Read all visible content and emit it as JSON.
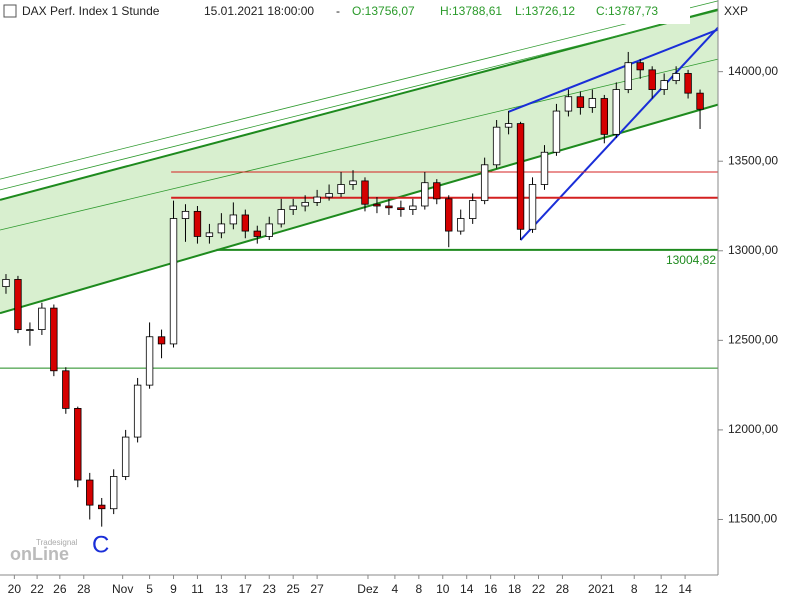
{
  "chart_data": {
    "type": "candlestick",
    "title": "DAX Perf. Index 1 Stunde",
    "datetime": "15.01.2021 18:00:00",
    "separator": "-",
    "ohlc_labels": [
      "O:13756,07",
      "H:13788,61",
      "L:13726,12",
      "C:13787,73"
    ],
    "symbol": "XXP",
    "annotation": "C",
    "watermark": [
      "Tradesignal",
      "onLine"
    ],
    "x": [
      0,
      1,
      2,
      3,
      4,
      5,
      6,
      7,
      8,
      9,
      10,
      11,
      12,
      13,
      14,
      15,
      16,
      17,
      18,
      19,
      20,
      21,
      22,
      23,
      24,
      25,
      26,
      27,
      28,
      29,
      30,
      31,
      32,
      33,
      34,
      35,
      36,
      37,
      38,
      39,
      40,
      41,
      42,
      43,
      44,
      45,
      46,
      47,
      48,
      49,
      50,
      51,
      52,
      53,
      54,
      55,
      56,
      57,
      58
    ],
    "open": [
      12800,
      12840,
      12560,
      12560,
      12680,
      12330,
      12120,
      11720,
      11580,
      11560,
      11740,
      11960,
      12250,
      12520,
      12480,
      13180,
      13220,
      13080,
      13100,
      13150,
      13200,
      13110,
      13080,
      13150,
      13230,
      13250,
      13270,
      13300,
      13320,
      13370,
      13390,
      13260,
      13250,
      13240,
      13230,
      13250,
      13380,
      13290,
      13110,
      13180,
      13280,
      13480,
      13690,
      13710,
      13120,
      13370,
      13550,
      13780,
      13860,
      13800,
      13850,
      13650,
      13900,
      14050,
      14010,
      13900,
      13950,
      13990,
      13880
    ],
    "high": [
      12870,
      12860,
      12600,
      12710,
      12700,
      12350,
      12130,
      11760,
      11620,
      11780,
      12000,
      12290,
      12600,
      12560,
      13280,
      13260,
      13250,
      13150,
      13210,
      13270,
      13230,
      13140,
      13190,
      13290,
      13290,
      13310,
      13340,
      13370,
      13440,
      13450,
      13410,
      13300,
      13290,
      13280,
      13290,
      13440,
      13400,
      13310,
      13230,
      13320,
      13520,
      13730,
      13780,
      13720,
      13410,
      13590,
      13820,
      13900,
      13890,
      13900,
      13870,
      13940,
      14110,
      14070,
      14030,
      13990,
      14030,
      14010,
      13900
    ],
    "low": [
      12760,
      12540,
      12470,
      12530,
      12300,
      12090,
      11680,
      11500,
      11460,
      11530,
      11720,
      11930,
      12230,
      12400,
      12460,
      13050,
      13040,
      13040,
      13070,
      13120,
      13070,
      13040,
      13060,
      13130,
      13200,
      13220,
      13250,
      13280,
      13300,
      13340,
      13220,
      13210,
      13200,
      13190,
      13200,
      13230,
      13260,
      13020,
      13090,
      13150,
      13260,
      13460,
      13650,
      13060,
      13100,
      13340,
      13530,
      13750,
      13760,
      13770,
      13600,
      13630,
      13880,
      13960,
      13850,
      13870,
      13930,
      13850,
      13680
    ],
    "close": [
      12840,
      12560,
      12560,
      12680,
      12330,
      12120,
      11720,
      11580,
      11560,
      11740,
      11960,
      12250,
      12520,
      12480,
      13180,
      13220,
      13080,
      13100,
      13150,
      13200,
      13110,
      13080,
      13150,
      13230,
      13250,
      13270,
      13300,
      13320,
      13370,
      13390,
      13260,
      13250,
      13240,
      13230,
      13250,
      13380,
      13290,
      13110,
      13180,
      13280,
      13480,
      13690,
      13710,
      13120,
      13370,
      13550,
      13780,
      13860,
      13800,
      13850,
      13650,
      13900,
      14050,
      14010,
      13900,
      13950,
      13990,
      13880,
      13790
    ],
    "up_color": "#ffffff",
    "down_color": "#d40000",
    "wick_color": "#000000",
    "channel": {
      "x": [
        -0.5,
        59.5
      ],
      "upper": [
        13284,
        14347
      ],
      "lower": [
        12652,
        13816
      ],
      "color": "#d8efcf",
      "line_color": "#1e8a1e"
    },
    "lines": [
      {
        "x": [
          -0.5,
          59.5
        ],
        "y": [
          13400,
          14395
        ],
        "color": "#2e9a2e",
        "width": 0.8
      },
      {
        "x": [
          -0.5,
          59.5
        ],
        "y": [
          13340,
          14340
        ],
        "color": "#2e9a2e",
        "width": 0.8
      },
      {
        "x": [
          -0.5,
          59.5
        ],
        "y": [
          13116,
          14070
        ],
        "color": "#2e9a2e",
        "width": 0.8
      },
      {
        "x": [
          43,
          59.5
        ],
        "y": [
          13060,
          14246
        ],
        "color": "#1a2ed8",
        "width": 2
      },
      {
        "x": [
          42,
          59.5
        ],
        "y": [
          13776,
          14235
        ],
        "color": "#1a2ed8",
        "width": 2
      }
    ],
    "hlines": [
      {
        "value": 13440,
        "x": [
          13.8,
          59.5
        ],
        "color": "#d42020",
        "width": 1
      },
      {
        "value": 13296,
        "x": [
          13.8,
          59.5
        ],
        "color": "#d42020",
        "width": 2
      },
      {
        "value": 13004.82,
        "label": "13004,82",
        "x": [
          17.6,
          59.5
        ],
        "color": "#1e8a1e",
        "width": 2
      },
      {
        "value": 12345,
        "x": [
          -0.5,
          59.5
        ],
        "color": "#1e8a1e",
        "width": 1
      }
    ],
    "xlim": [
      -0.5,
      59.5
    ],
    "xticks": [
      {
        "value": 0.7,
        "label": "20"
      },
      {
        "value": 2.6,
        "label": "22"
      },
      {
        "value": 4.5,
        "label": "26"
      },
      {
        "value": 6.5,
        "label": "28"
      },
      {
        "value": 9.75,
        "label": "Nov"
      },
      {
        "value": 12,
        "label": "5"
      },
      {
        "value": 14,
        "label": "9"
      },
      {
        "value": 16,
        "label": "11"
      },
      {
        "value": 18,
        "label": "13"
      },
      {
        "value": 20,
        "label": "17"
      },
      {
        "value": 22,
        "label": "23"
      },
      {
        "value": 24,
        "label": "25"
      },
      {
        "value": 26,
        "label": "27"
      },
      {
        "value": 30.25,
        "label": "Dez"
      },
      {
        "value": 32.5,
        "label": "4"
      },
      {
        "value": 34.5,
        "label": "8"
      },
      {
        "value": 36.5,
        "label": "10"
      },
      {
        "value": 38.5,
        "label": "14"
      },
      {
        "value": 40.5,
        "label": "16"
      },
      {
        "value": 42.5,
        "label": "18"
      },
      {
        "value": 44.5,
        "label": "22"
      },
      {
        "value": 46.5,
        "label": "28"
      },
      {
        "value": 49.75,
        "label": "2021"
      },
      {
        "value": 52.5,
        "label": "8"
      },
      {
        "value": 54.75,
        "label": "12"
      },
      {
        "value": 56.75,
        "label": "14"
      }
    ],
    "ylim": [
      11190,
      14400
    ],
    "yticks": [
      {
        "value": 11500,
        "label": "11500,00"
      },
      {
        "value": 12000,
        "label": "12000,00"
      },
      {
        "value": 12500,
        "label": "12500,00"
      },
      {
        "value": 13000,
        "label": "13000,00"
      },
      {
        "value": 13500,
        "label": "13500,00"
      },
      {
        "value": 14000,
        "label": "14000,00"
      }
    ]
  }
}
